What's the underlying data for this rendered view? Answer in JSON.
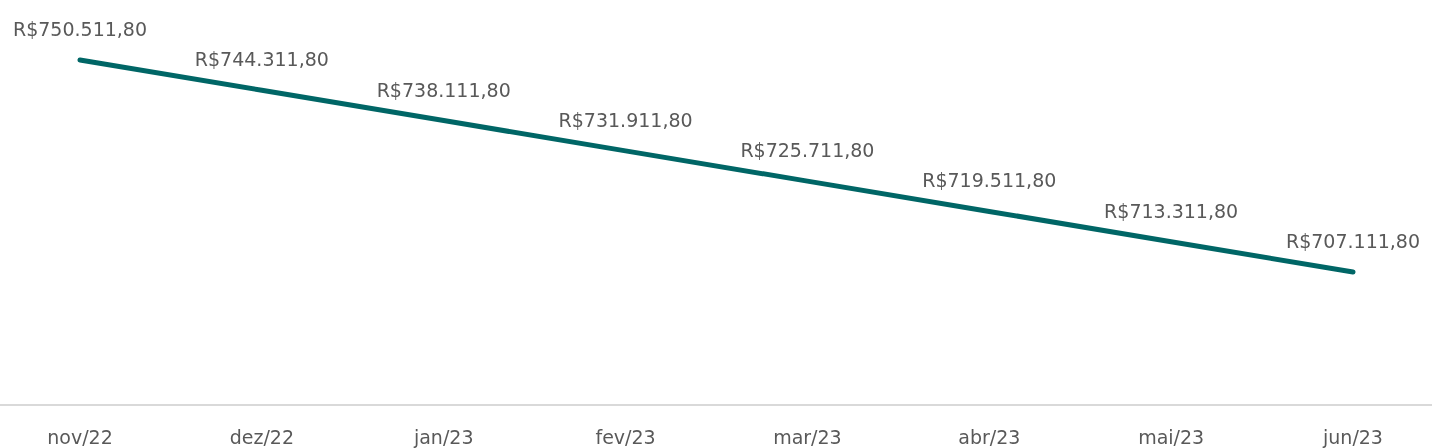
{
  "chart_data": {
    "type": "line",
    "categories": [
      "nov/22",
      "dez/22",
      "jan/23",
      "fev/23",
      "mar/23",
      "abr/23",
      "mai/23",
      "jun/23"
    ],
    "series": [
      {
        "color": "#006666",
        "values": [
          750511.8,
          744311.8,
          738111.8,
          731911.8,
          725711.8,
          719511.8,
          713311.8,
          707111.8
        ],
        "value_labels": [
          "R$750.511,80",
          "R$744.311,80",
          "R$738.111,80",
          "R$731.911,80",
          "R$725.711,80",
          "R$719.511,80",
          "R$713.311,80",
          "R$707.111,80"
        ]
      }
    ],
    "tick_labels": "x",
    "marker": "none",
    "line_style": "solid"
  }
}
